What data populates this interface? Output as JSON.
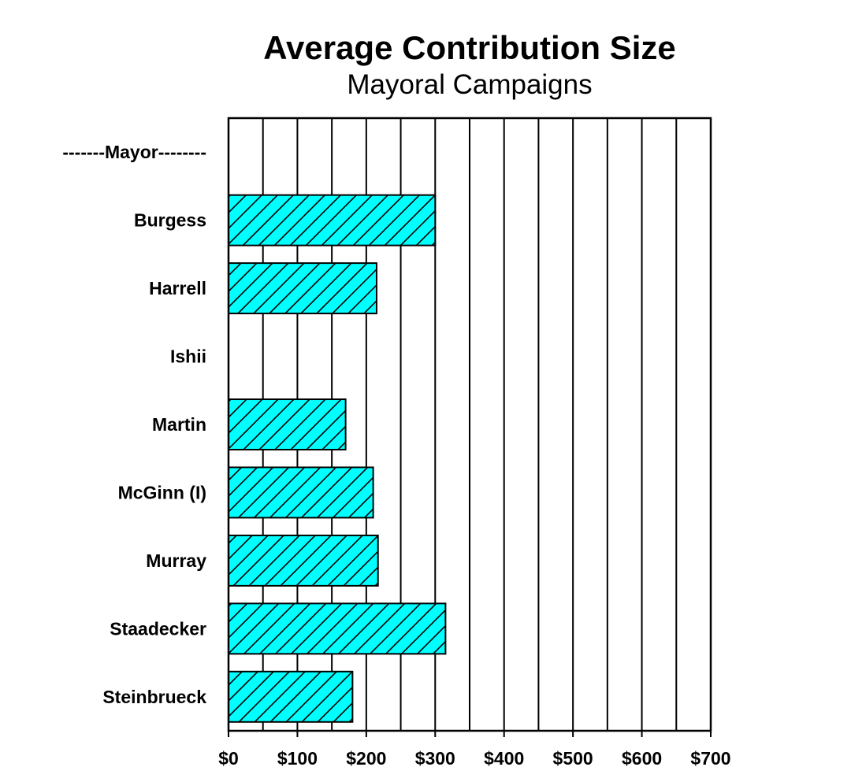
{
  "chart_data": {
    "type": "bar",
    "orientation": "horizontal",
    "title": "Average Contribution Size",
    "subtitle": "Mayoral Campaigns",
    "categories": [
      "-------Mayor--------",
      "Burgess",
      "Harrell",
      "Ishii",
      "Martin",
      "McGinn (I)",
      "Murray",
      "Staadecker",
      "Steinbrueck"
    ],
    "values": [
      null,
      300,
      215,
      null,
      170,
      210,
      217,
      315,
      180
    ],
    "xlim": [
      0,
      700
    ],
    "x_ticks": [
      0,
      100,
      200,
      300,
      400,
      500,
      600,
      700
    ],
    "x_tick_labels": [
      "$0",
      "$100",
      "$200",
      "$300",
      "$400",
      "$500",
      "$600",
      "$700"
    ],
    "x_minor_step": 50,
    "grid": true,
    "legend": "none",
    "bar_color": "#00ffff",
    "bar_pattern": "diagonal-hatch",
    "xlabel": "",
    "ylabel": ""
  }
}
